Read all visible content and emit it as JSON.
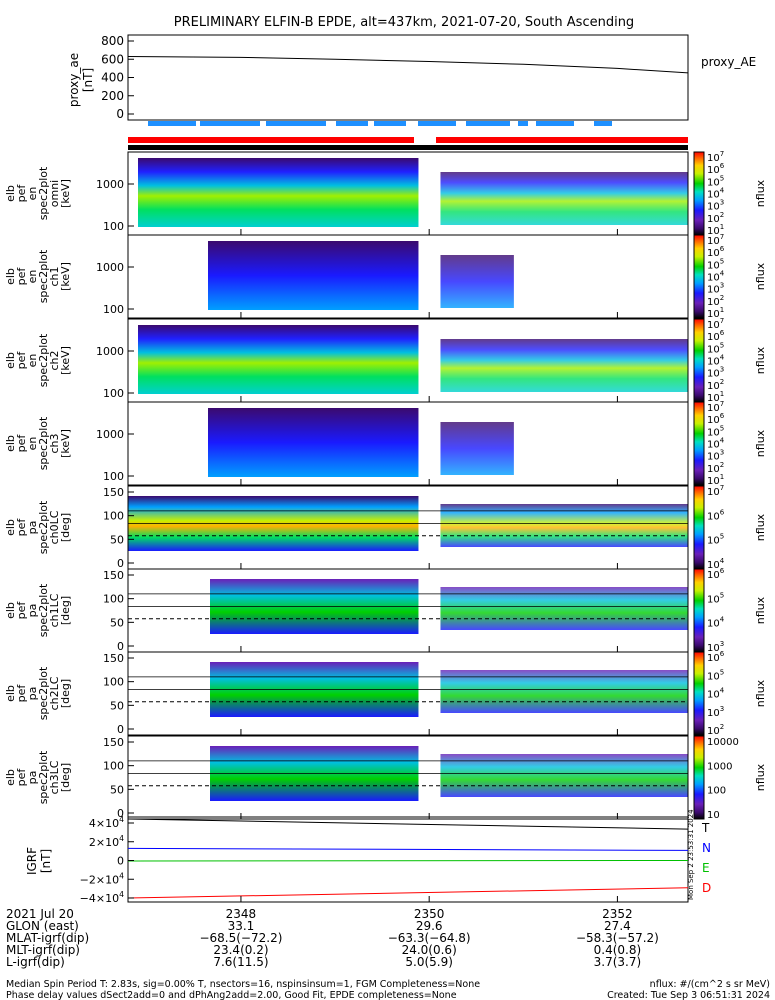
{
  "title": "PRELIMINARY ELFIN-B EPDE, alt=437km, 2021-07-20, South Ascending",
  "proxy_ae": {
    "ylabel": "proxy_ae\n[nT]",
    "legend": "proxy_AE",
    "yticks": [
      "800",
      "600",
      "400",
      "200",
      "0"
    ],
    "ylim": [
      0,
      800
    ],
    "x": [
      2346.8,
      2348,
      2349,
      2350,
      2351,
      2352,
      2352.75
    ],
    "values": [
      630,
      620,
      600,
      575,
      545,
      500,
      450
    ]
  },
  "panels": [
    {
      "ylabel": "elb\npef\nen\nspec2plot\nomni\n[keV]",
      "yticks": [
        "1000",
        "100"
      ],
      "cbar_ticks": [
        "10^7",
        "10^6",
        "10^5",
        "10^4",
        "10^3",
        "10^2",
        "10^1"
      ],
      "cbar_label": "nflux"
    },
    {
      "ylabel": "elb\npef\nen\nspec2plot\nch1\n[keV]",
      "yticks": [
        "1000",
        "100"
      ],
      "cbar_ticks": [
        "10^7",
        "10^6",
        "10^5",
        "10^4",
        "10^3",
        "10^2",
        "10^1"
      ],
      "cbar_label": "nflux"
    },
    {
      "ylabel": "elb\npef\nen\nspec2plot\nch2\n[keV]",
      "yticks": [
        "1000",
        "100"
      ],
      "cbar_ticks": [
        "10^7",
        "10^6",
        "10^5",
        "10^4",
        "10^3",
        "10^2",
        "10^1"
      ],
      "cbar_label": "nflux"
    },
    {
      "ylabel": "elb\npef\nen\nspec2plot\nch3\n[keV]",
      "yticks": [
        "1000",
        "100"
      ],
      "cbar_ticks": [
        "10^7",
        "10^6",
        "10^5",
        "10^4",
        "10^3",
        "10^2",
        "10^1"
      ],
      "cbar_label": "nflux"
    },
    {
      "ylabel": "elb\npef\npa\nspec2plot\nch0LC\n[deg]",
      "yticks": [
        "150",
        "100",
        "50",
        "0"
      ],
      "cbar_ticks": [
        "10^7",
        "10^6",
        "10^5",
        "10^4"
      ],
      "cbar_label": "nflux"
    },
    {
      "ylabel": "elb\npef\npa\nspec2plot\nch1LC\n[deg]",
      "yticks": [
        "150",
        "100",
        "50",
        "0"
      ],
      "cbar_ticks": [
        "10^6",
        "10^5",
        "10^4",
        "10^3"
      ],
      "cbar_label": "nflux"
    },
    {
      "ylabel": "elb\npef\npa\nspec2plot\nch2LC\n[deg]",
      "yticks": [
        "150",
        "100",
        "50",
        "0"
      ],
      "cbar_ticks": [
        "10^6",
        "10^5",
        "10^4",
        "10^3",
        "10^2"
      ],
      "cbar_label": "nflux"
    },
    {
      "ylabel": "elb\npef\npa\nspec2plot\nch3LC\n[deg]",
      "yticks": [
        "150",
        "100",
        "50",
        "0"
      ],
      "cbar_ticks": [
        "10000",
        "1000",
        "100",
        "10"
      ],
      "cbar_label": "nflux"
    }
  ],
  "igrf": {
    "ylabel": "IGRF\n[nT]",
    "yticks": [
      "4×10^4",
      "2×10^4",
      "0",
      "−2×10^4",
      "−4×10^4"
    ],
    "ylim": [
      -42000,
      42000
    ],
    "x": [
      2346.8,
      2352.75
    ],
    "series": [
      {
        "name": "T",
        "color": "#000000",
        "values": [
          40000,
          30000
        ]
      },
      {
        "name": "N",
        "color": "#0000ff",
        "values": [
          11000,
          9000
        ]
      },
      {
        "name": "E",
        "color": "#00c000",
        "values": [
          -1500,
          -1000
        ]
      },
      {
        "name": "D",
        "color": "#ff0000",
        "values": [
          -38000,
          -28000
        ]
      }
    ],
    "side_stamp": "Mon Sep 2 23:53:31 2024"
  },
  "xaxis": {
    "ticks": [
      "2348",
      "2350",
      "2352"
    ],
    "tick_values": [
      2348,
      2350,
      2352
    ],
    "xlim": [
      2346.8,
      2352.75
    ]
  },
  "annotation_table": {
    "row_labels": [
      "2021 Jul 20",
      "GLON (east)",
      "MLAT-igrf(dip)",
      "MLT-igrf(dip)",
      "L-igrf(dip)"
    ],
    "columns": [
      {
        "tick": "2348",
        "values": [
          "33.1",
          "−68.5(−72.2)",
          "23.4(0.2)",
          "7.6(11.5)"
        ]
      },
      {
        "tick": "2350",
        "values": [
          "29.6",
          "−63.3(−64.8)",
          "24.0(0.6)",
          "5.0(5.9)"
        ]
      },
      {
        "tick": "2352",
        "values": [
          "27.4",
          "−58.3(−57.2)",
          "0.4(0.8)",
          "3.7(3.7)"
        ]
      }
    ]
  },
  "footer": {
    "line1": "Median Spin Period T: 2.83s, sig=0.00% T, nsectors=16, nspinsinsum=1, FGM Completeness=None",
    "line1_right": "nflux: #/(cm^2 s sr MeV)",
    "line2": "Phase delay values dSect2add=0 and dPhAng2add=2.00, Good Fit, EPDE completeness=None",
    "line2_right": "Created: Tue Sep  3 06:51:31 2024"
  },
  "colors": {
    "red_bar": "#ff0000",
    "blue_bar": "#1e90ff",
    "axis": "#000000"
  }
}
